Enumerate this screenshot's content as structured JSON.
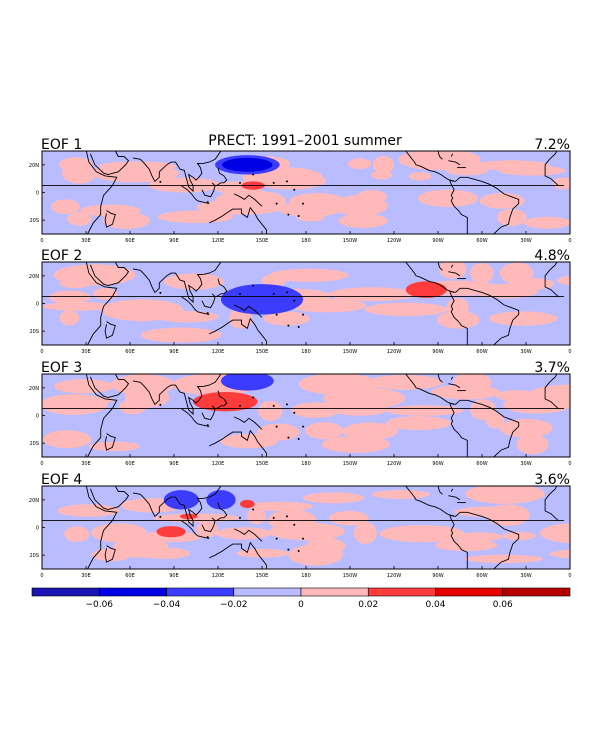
{
  "chart_data": {
    "type": "heatmap",
    "title": "PRECT: 1991–2001 summer",
    "panels": [
      {
        "label": "EOF 1",
        "variance": "7.2%",
        "negative_centers": [
          {
            "lon": 140,
            "lat": 20,
            "rx": 22,
            "ry": 7,
            "strength": -0.05
          }
        ],
        "positive_centers": [
          {
            "lon": 144,
            "lat": 5,
            "rx": 8,
            "ry": 3,
            "strength": 0.03
          }
        ]
      },
      {
        "label": "EOF 2",
        "variance": "4.8%",
        "negative_centers": [
          {
            "lon": 150,
            "lat": 3,
            "rx": 28,
            "ry": 11,
            "strength": -0.04
          }
        ],
        "positive_centers": [
          {
            "lon": 262,
            "lat": 10,
            "rx": 14,
            "ry": 6,
            "strength": 0.03
          }
        ]
      },
      {
        "label": "EOF 3",
        "variance": "3.7%",
        "negative_centers": [
          {
            "lon": 140,
            "lat": 25,
            "rx": 18,
            "ry": 7,
            "strength": -0.04
          }
        ],
        "positive_centers": [
          {
            "lon": 125,
            "lat": 10,
            "rx": 22,
            "ry": 7,
            "strength": 0.03
          }
        ]
      },
      {
        "label": "EOF 4",
        "variance": "3.6%",
        "negative_centers": [
          {
            "lon": 95,
            "lat": 20,
            "rx": 12,
            "ry": 7,
            "strength": -0.04
          },
          {
            "lon": 122,
            "lat": 20,
            "rx": 10,
            "ry": 7,
            "strength": -0.04
          }
        ],
        "positive_centers": [
          {
            "lon": 88,
            "lat": -3,
            "rx": 10,
            "ry": 4,
            "strength": 0.03
          },
          {
            "lon": 140,
            "lat": 17,
            "rx": 5,
            "ry": 3,
            "strength": 0.03
          },
          {
            "lon": 100,
            "lat": 8,
            "rx": 6,
            "ry": 2,
            "strength": 0.03
          }
        ]
      }
    ],
    "x_ticks": [
      "0",
      "30E",
      "60E",
      "90E",
      "120E",
      "150E",
      "180",
      "150W",
      "120W",
      "90W",
      "60W",
      "30W",
      "0"
    ],
    "y_ticks": [
      "20N",
      "0",
      "20S"
    ],
    "xlim": [
      0,
      360
    ],
    "ylim": [
      -30,
      30
    ],
    "colorbar": {
      "levels": [
        -0.08,
        -0.06,
        -0.04,
        -0.02,
        0,
        0.02,
        0.04,
        0.06,
        0.08
      ],
      "tick_labels": [
        "−0.06",
        "−0.04",
        "−0.02",
        "0",
        "0.02",
        "0.04",
        "0.06"
      ],
      "colors": [
        "#1a14b4",
        "#0000e6",
        "#3c3cff",
        "#b9bcff",
        "#ffb9b9",
        "#ff3c3c",
        "#e60000",
        "#b40000"
      ]
    }
  }
}
